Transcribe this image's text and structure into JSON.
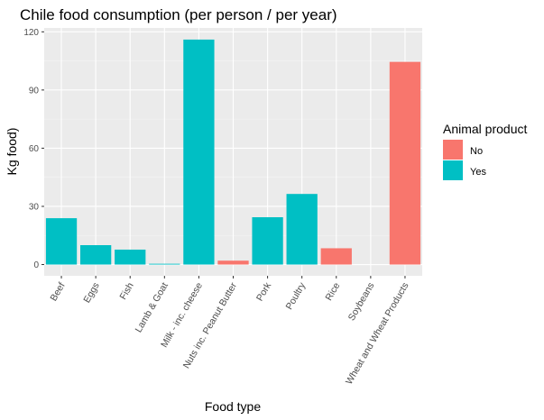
{
  "chart_data": {
    "type": "bar",
    "title": "Chile food consumption (per person / per year)",
    "xlabel": "Food type",
    "ylabel": "Kg food)",
    "ylim": [
      -5.8,
      122
    ],
    "yticks": [
      0,
      30,
      60,
      90,
      120
    ],
    "grid": true,
    "legend_position": "right",
    "legend": {
      "title": "Animal product",
      "entries": [
        {
          "label": "No",
          "color": "#F8766D"
        },
        {
          "label": "Yes",
          "color": "#00BFC4"
        }
      ]
    },
    "categories": [
      "Beef",
      "Eggs",
      "Fish",
      "Lamb & Goat",
      "Milk - inc. cheese",
      "Nuts inc. Peanut Butter",
      "Pork",
      "Poultry",
      "Rice",
      "Soybeans",
      "Wheat and Wheat Products"
    ],
    "values": [
      23.9,
      10.0,
      7.7,
      0.4,
      116.0,
      2.0,
      24.4,
      36.4,
      8.4,
      0.0,
      104.5
    ],
    "animal_product": [
      "Yes",
      "Yes",
      "Yes",
      "Yes",
      "Yes",
      "No",
      "Yes",
      "Yes",
      "No",
      "No",
      "No"
    ]
  }
}
